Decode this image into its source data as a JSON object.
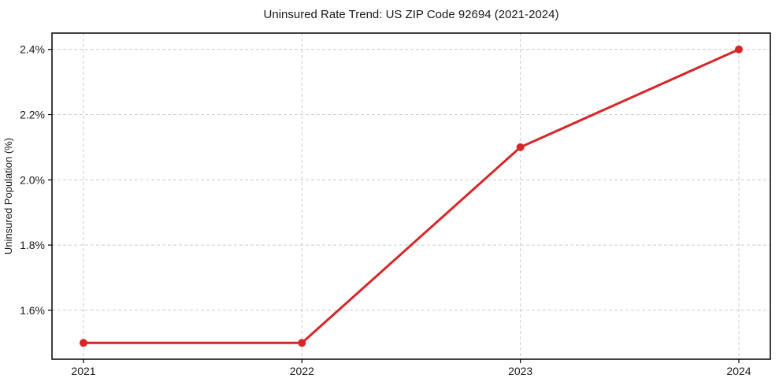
{
  "chart_data": {
    "type": "line",
    "title": "Uninsured Rate Trend: US ZIP Code 92694 (2021-2024)",
    "xlabel": "",
    "ylabel": "Uninsured Population (%)",
    "categories": [
      "2021",
      "2022",
      "2023",
      "2024"
    ],
    "series": [
      {
        "name": "uninsured-rate",
        "values": [
          1.5,
          1.5,
          2.1,
          2.4
        ],
        "color": "#d62728",
        "marker": "circle"
      }
    ],
    "ylim": [
      1.45,
      2.45
    ],
    "yticks": [
      1.6,
      1.8,
      2.0,
      2.2,
      2.4
    ],
    "ytick_labels": [
      "1.6%",
      "1.8%",
      "2.0%",
      "2.2%",
      "2.4%"
    ],
    "grid": {
      "show": true,
      "style": "dashed",
      "color": "#cccccc"
    },
    "legend": "none",
    "background": "#ffffff",
    "spine_color": "#000000",
    "text_color": "#1a1a1a"
  }
}
